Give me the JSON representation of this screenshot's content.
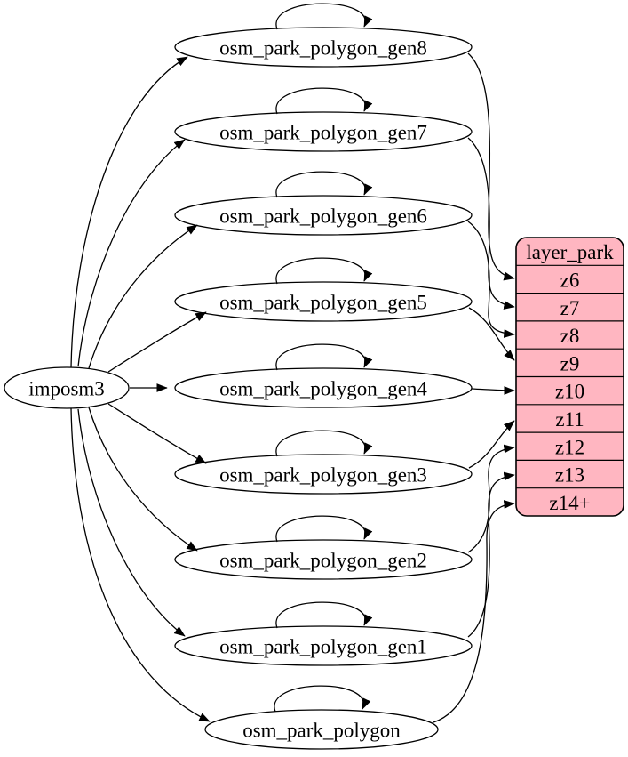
{
  "diagram": {
    "type": "graphviz-digraph",
    "description": "imposm3 park tables mapped to layer_park zoom levels",
    "colors": {
      "background": "#ffffff",
      "node_fill": "#ffffff",
      "node_stroke": "#000000",
      "edge": "#000000",
      "table_fill": "#ffb6c1",
      "table_stroke": "#000000",
      "text": "#000000"
    },
    "nodes": [
      {
        "id": "imposm3",
        "label": "imposm3"
      },
      {
        "id": "osm_park_polygon_gen8",
        "label": "osm_park_polygon_gen8"
      },
      {
        "id": "osm_park_polygon_gen7",
        "label": "osm_park_polygon_gen7"
      },
      {
        "id": "osm_park_polygon_gen6",
        "label": "osm_park_polygon_gen6"
      },
      {
        "id": "osm_park_polygon_gen5",
        "label": "osm_park_polygon_gen5"
      },
      {
        "id": "osm_park_polygon_gen4",
        "label": "osm_park_polygon_gen4"
      },
      {
        "id": "osm_park_polygon_gen3",
        "label": "osm_park_polygon_gen3"
      },
      {
        "id": "osm_park_polygon_gen2",
        "label": "osm_park_polygon_gen2"
      },
      {
        "id": "osm_park_polygon_gen1",
        "label": "osm_park_polygon_gen1"
      },
      {
        "id": "osm_park_polygon",
        "label": "osm_park_polygon"
      }
    ],
    "table": {
      "id": "layer_park",
      "title": "layer_park",
      "rows": [
        "z6",
        "z7",
        "z8",
        "z9",
        "z10",
        "z11",
        "z12",
        "z13",
        "z14+"
      ]
    },
    "edges": [
      {
        "from": "imposm3",
        "to": "osm_park_polygon_gen8"
      },
      {
        "from": "imposm3",
        "to": "osm_park_polygon_gen7"
      },
      {
        "from": "imposm3",
        "to": "osm_park_polygon_gen6"
      },
      {
        "from": "imposm3",
        "to": "osm_park_polygon_gen5"
      },
      {
        "from": "imposm3",
        "to": "osm_park_polygon_gen4"
      },
      {
        "from": "imposm3",
        "to": "osm_park_polygon_gen3"
      },
      {
        "from": "imposm3",
        "to": "osm_park_polygon_gen2"
      },
      {
        "from": "imposm3",
        "to": "osm_park_polygon_gen1"
      },
      {
        "from": "imposm3",
        "to": "osm_park_polygon"
      },
      {
        "from": "osm_park_polygon_gen8",
        "to": "osm_park_polygon_gen8",
        "self": true
      },
      {
        "from": "osm_park_polygon_gen7",
        "to": "osm_park_polygon_gen7",
        "self": true
      },
      {
        "from": "osm_park_polygon_gen6",
        "to": "osm_park_polygon_gen6",
        "self": true
      },
      {
        "from": "osm_park_polygon_gen5",
        "to": "osm_park_polygon_gen5",
        "self": true
      },
      {
        "from": "osm_park_polygon_gen4",
        "to": "osm_park_polygon_gen4",
        "self": true
      },
      {
        "from": "osm_park_polygon_gen3",
        "to": "osm_park_polygon_gen3",
        "self": true
      },
      {
        "from": "osm_park_polygon_gen2",
        "to": "osm_park_polygon_gen2",
        "self": true
      },
      {
        "from": "osm_park_polygon_gen1",
        "to": "osm_park_polygon_gen1",
        "self": true
      },
      {
        "from": "osm_park_polygon",
        "to": "osm_park_polygon",
        "self": true
      },
      {
        "from": "osm_park_polygon_gen8",
        "to": "layer_park",
        "port": "z6"
      },
      {
        "from": "osm_park_polygon_gen7",
        "to": "layer_park",
        "port": "z7"
      },
      {
        "from": "osm_park_polygon_gen6",
        "to": "layer_park",
        "port": "z8"
      },
      {
        "from": "osm_park_polygon_gen5",
        "to": "layer_park",
        "port": "z9"
      },
      {
        "from": "osm_park_polygon_gen4",
        "to": "layer_park",
        "port": "z10"
      },
      {
        "from": "osm_park_polygon_gen3",
        "to": "layer_park",
        "port": "z11"
      },
      {
        "from": "osm_park_polygon_gen2",
        "to": "layer_park",
        "port": "z12"
      },
      {
        "from": "osm_park_polygon_gen1",
        "to": "layer_park",
        "port": "z13"
      },
      {
        "from": "osm_park_polygon",
        "to": "layer_park",
        "port": "z14+"
      }
    ]
  }
}
